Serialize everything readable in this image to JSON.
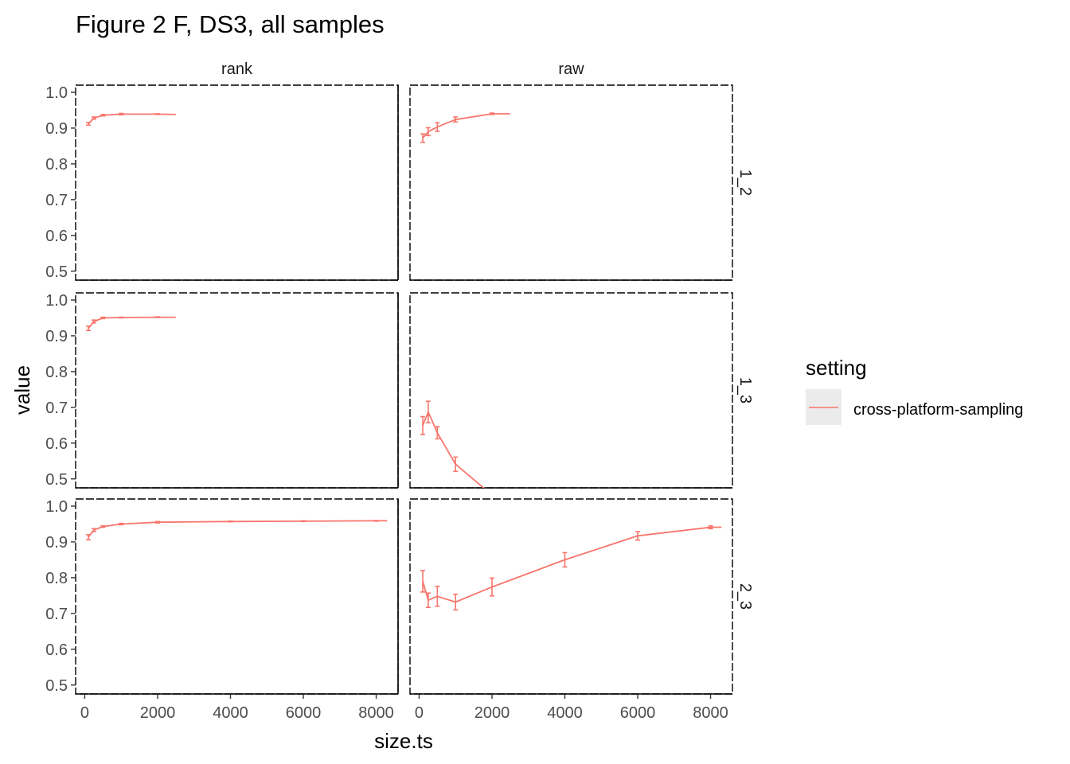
{
  "chart_data": {
    "type": "line",
    "title": "Figure 2 F, DS3, all samples",
    "xlabel": "size.ts",
    "ylabel": "value",
    "xlim": [
      -250,
      8600
    ],
    "ylim": [
      0.475,
      1.02
    ],
    "x_ticks": [
      0,
      2000,
      4000,
      6000,
      8000
    ],
    "x_tick_labels": [
      "0",
      "2000",
      "4000",
      "6000",
      "8000"
    ],
    "y_ticks": [
      0.5,
      0.6,
      0.7,
      0.8,
      0.9,
      1.0
    ],
    "y_tick_labels": [
      "0.5",
      "0.6",
      "0.7",
      "0.8",
      "0.9",
      "1.0"
    ],
    "facet_columns": [
      "rank",
      "raw"
    ],
    "facet_rows": [
      "1_2",
      "1_3",
      "2_3"
    ],
    "grid": false,
    "legend": {
      "title": "setting",
      "position": "right",
      "entries": [
        {
          "label": "cross-platform-sampling",
          "color": "#F8766D"
        }
      ]
    },
    "series_color": "#F8766D",
    "panels": [
      {
        "row": "1_2",
        "col": "rank",
        "x": [
          100,
          250,
          500,
          1000,
          2000,
          2500
        ],
        "y": [
          0.912,
          0.928,
          0.936,
          0.939,
          0.939,
          0.938
        ],
        "err": [
          0.004,
          0.003,
          0.002,
          0.002,
          0.001,
          0.0
        ]
      },
      {
        "row": "1_2",
        "col": "raw",
        "x": [
          100,
          250,
          500,
          1000,
          2000,
          2500
        ],
        "y": [
          0.872,
          0.89,
          0.903,
          0.924,
          0.94,
          0.94
        ],
        "err": [
          0.012,
          0.011,
          0.012,
          0.007,
          0.002,
          0.0
        ]
      },
      {
        "row": "1_3",
        "col": "rank",
        "x": [
          100,
          250,
          500,
          1000,
          2000,
          2500
        ],
        "y": [
          0.921,
          0.94,
          0.95,
          0.951,
          0.952,
          0.952
        ],
        "err": [
          0.006,
          0.004,
          0.002,
          0.001,
          0.001,
          0.0
        ]
      },
      {
        "row": "1_3",
        "col": "raw",
        "x": [
          100,
          250,
          500,
          1000,
          2000,
          2500
        ],
        "y": [
          0.649,
          0.687,
          0.629,
          0.541,
          0.455,
          0.414
        ],
        "err": [
          0.025,
          0.03,
          0.017,
          0.02,
          0.0,
          0.0
        ]
      },
      {
        "row": "2_3",
        "col": "rank",
        "x": [
          100,
          250,
          500,
          1000,
          2000,
          4000,
          6000,
          8000,
          8300
        ],
        "y": [
          0.913,
          0.933,
          0.943,
          0.95,
          0.955,
          0.957,
          0.958,
          0.959,
          0.959
        ],
        "err": [
          0.007,
          0.004,
          0.002,
          0.002,
          0.002,
          0.001,
          0.001,
          0.001,
          0.0
        ]
      },
      {
        "row": "2_3",
        "col": "raw",
        "x": [
          100,
          250,
          500,
          1000,
          2000,
          4000,
          6000,
          8000,
          8300
        ],
        "y": [
          0.79,
          0.737,
          0.748,
          0.732,
          0.774,
          0.85,
          0.917,
          0.941,
          0.941
        ],
        "err": [
          0.03,
          0.02,
          0.028,
          0.022,
          0.025,
          0.02,
          0.012,
          0.004,
          0.0
        ]
      }
    ]
  }
}
